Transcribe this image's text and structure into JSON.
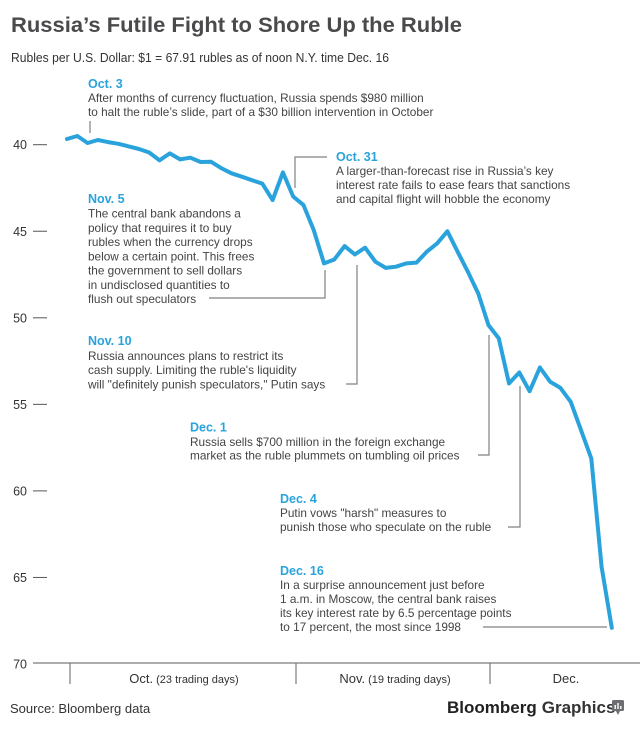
{
  "header": {
    "title": "Russia’s Futile Fight to Shore Up the Ruble",
    "subtitle": "Rubles per U.S. Dollar: $1 = 67.91 rubles as of noon N.Y. time Dec. 16"
  },
  "annotations": [
    {
      "date": "Oct. 3",
      "lines": [
        "After months of currency fluctuation, Russia spends $980 million",
        "to halt the ruble’s slide, part of a $30 billion intervention in October"
      ]
    },
    {
      "date": "Oct. 31",
      "lines": [
        "A larger-than-forecast rise in Russia’s key",
        "interest rate fails to ease fears that sanctions",
        "and capital flight will hobble the economy"
      ]
    },
    {
      "date": "Nov. 5",
      "lines": [
        "The central bank abandons a",
        "policy that requires it to buy",
        "rubles when the currency drops",
        "below a certain point. This frees",
        "the government to sell dollars",
        "in undisclosed quantities to",
        "flush out speculators"
      ]
    },
    {
      "date": "Nov. 10",
      "lines": [
        "Russia announces plans to restrict its",
        "cash supply. Limiting the ruble's liquidity",
        "will \"definitely punish speculators,\" Putin says"
      ]
    },
    {
      "date": "Dec. 1",
      "lines": [
        "Russia sells $700 million in the foreign exchange",
        "market as the ruble plummets on tumbling oil prices"
      ]
    },
    {
      "date": "Dec. 4",
      "lines": [
        "Putin vows \"harsh\" measures to",
        "punish those who speculate on the ruble"
      ]
    },
    {
      "date": "Dec. 16",
      "lines": [
        "In a surprise announcement just before",
        "1 a.m. in Moscow, the central bank raises",
        "its key interest rate by 6.5 percentage points",
        "to 17 percent, the most since 1998"
      ]
    }
  ],
  "footer": {
    "source": "Source: Bloomberg data",
    "brand_bold": "Bloomberg",
    "brand_light": "Graphics",
    "brand_icon": "bar-chart-icon"
  },
  "colors": {
    "line": "#2aa3dc",
    "accent": "#2aa3dc",
    "title": "#4a4a4c",
    "text": "#444444",
    "leader": "#808080"
  },
  "chart_data": {
    "type": "line",
    "title": "Russia’s Futile Fight to Shore Up the Ruble",
    "subtitle": "Rubles per U.S. Dollar: $1 = 67.91 rubles as of noon N.Y. time Dec. 16",
    "xlabel": "trading day",
    "ylabel": "Rubles per U.S. Dollar",
    "y_inverted": true,
    "ylim": [
      40,
      70
    ],
    "yticks": [
      40,
      45,
      50,
      55,
      60,
      65,
      70
    ],
    "grid": false,
    "legend": "none",
    "x_categories": [
      {
        "label": "Oct.",
        "note": "(23 trading days)"
      },
      {
        "label": "Nov.",
        "note": "(19 trading days)"
      },
      {
        "label": "Dec.",
        "note": ""
      }
    ],
    "x": [
      0,
      1,
      2,
      3,
      4,
      5,
      6,
      7,
      8,
      9,
      10,
      11,
      12,
      13,
      14,
      15,
      16,
      17,
      18,
      19,
      20,
      21,
      22,
      23,
      24,
      25,
      26,
      27,
      28,
      29,
      30,
      31,
      32,
      33,
      34,
      35,
      36,
      37,
      38,
      39,
      40,
      41,
      42,
      43,
      44,
      45,
      46,
      47,
      48,
      49,
      50,
      51,
      52,
      53
    ],
    "series": [
      {
        "name": "Rubles per U.S. Dollar",
        "values": [
          39.67,
          39.5,
          39.9,
          39.73,
          39.85,
          39.95,
          40.1,
          40.25,
          40.45,
          40.9,
          40.5,
          40.85,
          40.75,
          41.0,
          40.98,
          41.35,
          41.65,
          41.85,
          42.05,
          42.25,
          43.2,
          41.6,
          43.0,
          43.48,
          44.93,
          46.86,
          46.63,
          45.86,
          46.34,
          45.95,
          46.76,
          47.12,
          47.05,
          46.86,
          46.81,
          46.18,
          45.7,
          45.0,
          46.18,
          47.34,
          48.59,
          50.42,
          51.19,
          53.79,
          53.16,
          54.24,
          52.87,
          53.7,
          54.05,
          54.85,
          56.49,
          58.13,
          64.39,
          67.91
        ]
      }
    ]
  }
}
